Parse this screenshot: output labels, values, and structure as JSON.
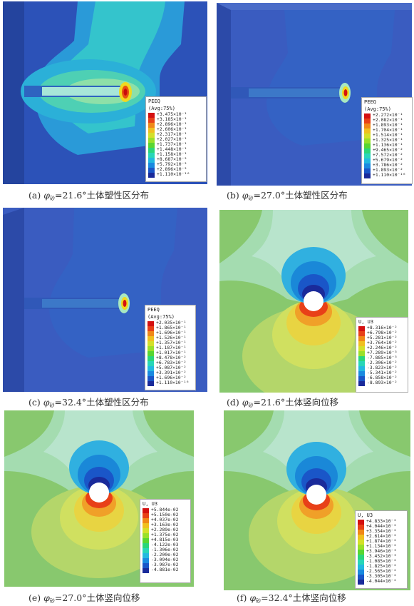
{
  "colors": {
    "palette": [
      "#1a2a9a",
      "#1a56c8",
      "#1a8ae0",
      "#22b9e0",
      "#28d6b8",
      "#2ad67a",
      "#58d632",
      "#9ae02a",
      "#d4e02a",
      "#f0c020",
      "#f08818",
      "#e84018",
      "#d41010"
    ],
    "seepage_body": "#3a5cc0",
    "disp_bg": "#88c86e"
  },
  "panels": [
    {
      "id": "a",
      "caption": {
        "label": "(a)",
        "phi": "φ",
        "sub": "砂",
        "value": "=21.6°",
        "text": "土体塑性区分布"
      },
      "legend": {
        "title": "PEEQ",
        "subtitle": "(Avg:75%)",
        "values": [
          "+3.475×10⁻¹",
          "+3.185×10⁻¹",
          "+2.896×10⁻¹",
          "+2.606×10⁻¹",
          "+2.317×10⁻¹",
          "+2.027×10⁻¹",
          "+1.737×10⁻¹",
          "+1.448×10⁻¹",
          "+1.158×10⁻¹",
          "+8.687×10⁻²",
          "+5.792×10⁻²",
          "+2.896×10⁻²",
          "+1.110×10⁻¹⁶"
        ]
      }
    },
    {
      "id": "b",
      "caption": {
        "label": "(b)",
        "phi": "φ",
        "sub": "砂",
        "value": "=27.0°",
        "text": "土体塑性区分布"
      },
      "legend": {
        "title": "PEEQ",
        "subtitle": "(Avg:75%)",
        "values": [
          "+2.272×10⁻¹",
          "+2.082×10⁻¹",
          "+1.893×10⁻¹",
          "+1.704×10⁻¹",
          "+1.514×10⁻¹",
          "+1.325×10⁻¹",
          "+1.136×10⁻¹",
          "+9.465×10⁻²",
          "+7.572×10⁻²",
          "+5.679×10⁻²",
          "+3.786×10⁻²",
          "+1.893×10⁻²",
          "+1.110×10⁻¹⁶"
        ]
      }
    },
    {
      "id": "c",
      "caption": {
        "label": "(c)",
        "phi": "φ",
        "sub": "砂",
        "value": "=32.4°",
        "text": "土体塑性区分布"
      },
      "legend": {
        "title": "PEEQ",
        "subtitle": "(Avg:75%)",
        "values": [
          "+2.035×10⁻¹",
          "+1.865×10⁻¹",
          "+1.696×10⁻¹",
          "+1.526×10⁻¹",
          "+1.357×10⁻¹",
          "+1.187×10⁻¹",
          "+1.017×10⁻¹",
          "+8.478×10⁻²",
          "+6.783×10⁻²",
          "+5.087×10⁻²",
          "+3.391×10⁻²",
          "+1.696×10⁻²",
          "+1.110×10⁻¹⁶"
        ]
      }
    },
    {
      "id": "d",
      "caption": {
        "label": "(d)",
        "phi": "φ",
        "sub": "砂",
        "value": "=21.6°",
        "text": "土体竖向位移"
      },
      "legend": {
        "title": "U, U3",
        "subtitle": "",
        "values": [
          "+8.316×10⁻²",
          "+6.798×10⁻²",
          "+5.281×10⁻²",
          "+3.764×10⁻²",
          "+2.246×10⁻²",
          "+7.289×10⁻³",
          "-7.885×10⁻³",
          "-2.306×10⁻²",
          "-3.823×10⁻²",
          "-5.341×10⁻²",
          "-6.858×10⁻²",
          "-8.893×10⁻²"
        ]
      }
    },
    {
      "id": "e",
      "caption": {
        "label": "(e)",
        "phi": "φ",
        "sub": "砂",
        "value": "=27.0°",
        "text": "土体竖向位移"
      },
      "legend": {
        "title": "U, U3",
        "subtitle": "",
        "values": [
          "+5.844e-02",
          "+5.150e-02",
          "+4.037e-02",
          "+3.163e-02",
          "+2.289e-02",
          "+1.375e-02",
          "+4.815e-03",
          "-4.122e-03",
          "-1.306e-02",
          "-2.200e-02",
          "-3.094e-02",
          "-3.987e-02",
          "-4.881e-02"
        ]
      }
    },
    {
      "id": "f",
      "caption": {
        "label": "(f)",
        "phi": "φ",
        "sub": "砂",
        "value": "=32.4°",
        "text": "土体竖向位移"
      },
      "legend": {
        "title": "U, U3",
        "subtitle": "",
        "values": [
          "+4.833×10⁻²",
          "+4.044×10⁻²",
          "+3.354×10⁻²",
          "+2.614×10⁻²",
          "+1.874×10⁻²",
          "+1.134×10⁻²",
          "+3.946×10⁻³",
          "-3.452×10⁻³",
          "-1.085×10⁻²",
          "-1.825×10⁻²",
          "-2.565×10⁻²",
          "-3.305×10⁻²",
          "-4.044×10⁻²"
        ]
      }
    }
  ]
}
